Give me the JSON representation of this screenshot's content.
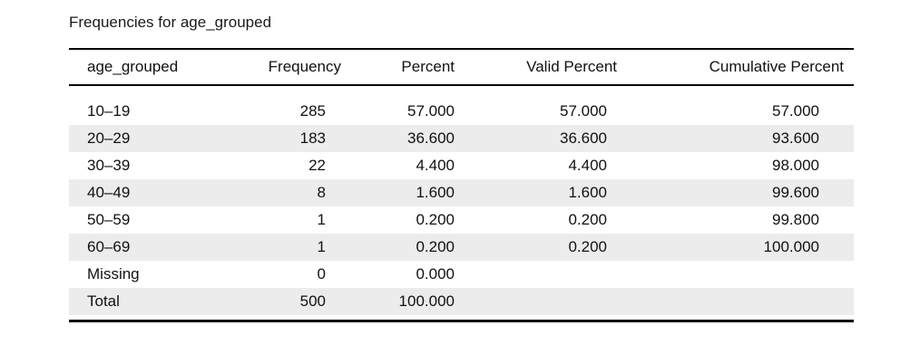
{
  "table": {
    "title": "Frequencies for age_grouped",
    "columns": [
      "age_grouped",
      "Frequency",
      "Percent",
      "Valid Percent",
      "Cumulative Percent"
    ],
    "rows": [
      {
        "group": "10–19",
        "frequency": "285",
        "percent": "57.000",
        "valid_percent": "57.000",
        "cumulative_percent": "57.000"
      },
      {
        "group": "20–29",
        "frequency": "183",
        "percent": "36.600",
        "valid_percent": "36.600",
        "cumulative_percent": "93.600"
      },
      {
        "group": "30–39",
        "frequency": "22",
        "percent": "4.400",
        "valid_percent": "4.400",
        "cumulative_percent": "98.000"
      },
      {
        "group": "40–49",
        "frequency": "8",
        "percent": "1.600",
        "valid_percent": "1.600",
        "cumulative_percent": "99.600"
      },
      {
        "group": "50–59",
        "frequency": "1",
        "percent": "0.200",
        "valid_percent": "0.200",
        "cumulative_percent": "99.800"
      },
      {
        "group": "60–69",
        "frequency": "1",
        "percent": "0.200",
        "valid_percent": "0.200",
        "cumulative_percent": "100.000"
      },
      {
        "group": "Missing",
        "frequency": "0",
        "percent": "0.000",
        "valid_percent": "",
        "cumulative_percent": ""
      },
      {
        "group": "Total",
        "frequency": "500",
        "percent": "100.000",
        "valid_percent": "",
        "cumulative_percent": ""
      }
    ]
  },
  "colors": {
    "stripe": "#ececec",
    "rule": "#000000",
    "text": "#111111"
  },
  "chart_data": {
    "type": "table",
    "title": "Frequencies for age_grouped",
    "columns": [
      "age_grouped",
      "Frequency",
      "Percent",
      "Valid Percent",
      "Cumulative Percent"
    ],
    "rows": [
      [
        "10–19",
        285,
        57.0,
        57.0,
        57.0
      ],
      [
        "20–29",
        183,
        36.6,
        36.6,
        93.6
      ],
      [
        "30–39",
        22,
        4.4,
        4.4,
        98.0
      ],
      [
        "40–49",
        8,
        1.6,
        1.6,
        99.6
      ],
      [
        "50–59",
        1,
        0.2,
        0.2,
        99.8
      ],
      [
        "60–69",
        1,
        0.2,
        0.2,
        100.0
      ],
      [
        "Missing",
        0,
        0.0,
        null,
        null
      ],
      [
        "Total",
        500,
        100.0,
        null,
        null
      ]
    ],
    "layout_hints": {
      "striped_rows": "even data rows shaded light gray",
      "numeric_alignment": "right",
      "first_column_alignment": "left",
      "rules": "horizontal only: top, below header, thick bottom"
    }
  }
}
